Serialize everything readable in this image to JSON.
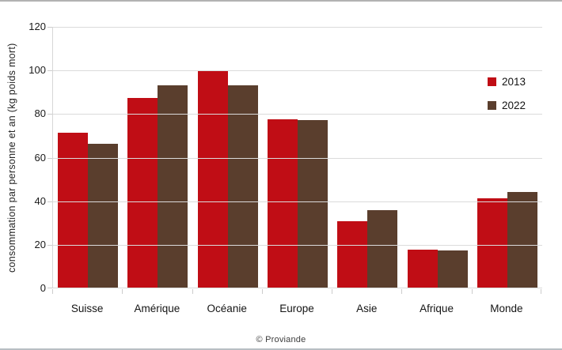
{
  "page": {
    "footer": "© Proviande"
  },
  "chart_data": {
    "type": "bar",
    "title": "",
    "xlabel": "",
    "ylabel": "consommation par personne et an (kg poids mort)",
    "categories": [
      "Suisse",
      "Amérique",
      "Océanie",
      "Europe",
      "Asie",
      "Afrique",
      "Monde"
    ],
    "series": [
      {
        "name": "2013",
        "color": "#c00d15",
        "values": [
          71.5,
          87.5,
          100,
          77.5,
          31,
          17.8,
          41.5
        ]
      },
      {
        "name": "2022",
        "color": "#5a3e2d",
        "values": [
          66.5,
          93.2,
          93.2,
          77.3,
          36,
          17.5,
          44.3
        ]
      }
    ],
    "ylim": [
      0,
      120
    ],
    "yticks": [
      0,
      20,
      40,
      60,
      80,
      100,
      120
    ],
    "grid": true,
    "grid_color": "#dbdbdb",
    "legend_position": "top-right-inside"
  }
}
